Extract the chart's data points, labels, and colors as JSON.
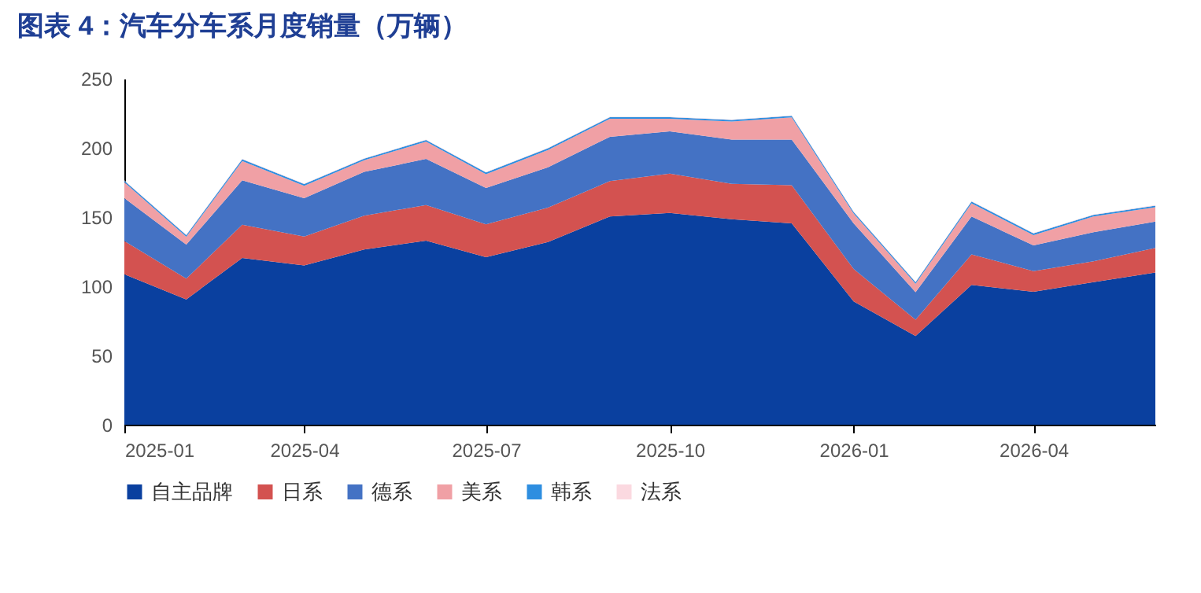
{
  "chart_data": {
    "type": "area",
    "stacked": true,
    "title": "图表 4：汽车分车系月度销量（万辆）",
    "x": [
      "2025-01",
      "2025-02",
      "2025-03",
      "2025-04",
      "2025-05",
      "2025-06",
      "2025-07",
      "2025-08",
      "2025-09",
      "2025-10",
      "2025-11",
      "2025-12",
      "2026-01",
      "2026-02",
      "2026-03",
      "2026-04",
      "2026-05",
      "2026-06"
    ],
    "xlim": [
      "2025-01",
      "2026-06"
    ],
    "xticks": [
      "2025-01",
      "2025-04",
      "2025-07",
      "2025-10",
      "2026-01",
      "2026-04"
    ],
    "ylim": [
      0,
      250
    ],
    "yticks": [
      0,
      50,
      100,
      150,
      200,
      250
    ],
    "grid": false,
    "legend": "bottom",
    "series": [
      {
        "name": "自主品牌",
        "color": "#0a409f",
        "values": [
          108.7,
          90.5,
          120.5,
          115,
          126.5,
          133,
          121,
          132,
          150.4,
          153,
          148.5,
          145.5,
          89,
          64,
          101,
          96,
          103,
          110
        ]
      },
      {
        "name": "日系",
        "color": "#d35250",
        "values": [
          24,
          15,
          24,
          21,
          24.5,
          25.7,
          23.7,
          24.8,
          25.6,
          28.4,
          25.5,
          27.5,
          23.5,
          11.8,
          22,
          15,
          15,
          17.7
        ]
      },
      {
        "name": "德系",
        "color": "#4472c4",
        "values": [
          31,
          24.6,
          32,
          27.6,
          31.6,
          33.3,
          26.3,
          29.2,
          32,
          30.6,
          32,
          33,
          33,
          20,
          27.4,
          18.5,
          21,
          19
        ]
      },
      {
        "name": "美系",
        "color": "#f0a0a5",
        "values": [
          11.4,
          5.7,
          14,
          9,
          8.4,
          12.5,
          10,
          12.5,
          13,
          9,
          13,
          16,
          7,
          6,
          9.6,
          7.5,
          11.4,
          10.4
        ]
      },
      {
        "name": "韩系",
        "color": "#2e8ee0",
        "values": [
          1.2,
          1.2,
          1.2,
          1.2,
          1.2,
          1.2,
          1.2,
          1.2,
          1.2,
          1.2,
          1.2,
          1.2,
          1.2,
          1.2,
          1.2,
          1.2,
          1.2,
          1.2
        ]
      },
      {
        "name": "法系",
        "color": "#fbd9e0",
        "values": [
          0.3,
          0.3,
          0.3,
          0.3,
          0.3,
          0.3,
          0.3,
          0.3,
          0.3,
          0.3,
          0.3,
          0.3,
          0.3,
          0.3,
          0.3,
          0.3,
          0.3,
          0.3
        ]
      }
    ]
  }
}
